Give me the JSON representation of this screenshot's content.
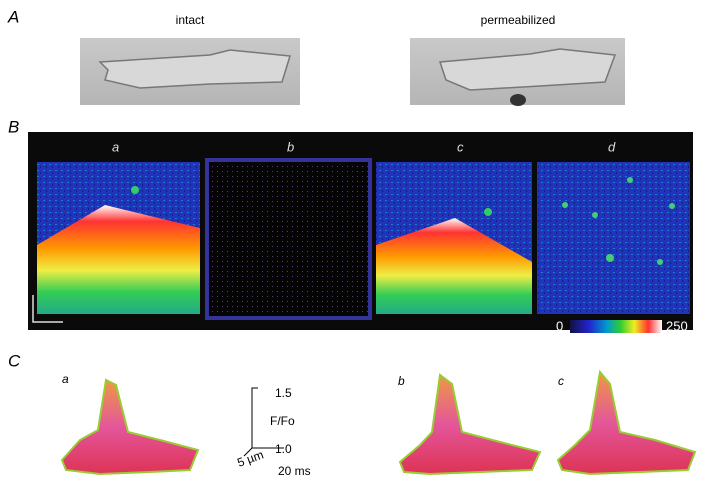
{
  "panel_a": {
    "label": "A",
    "images": [
      "intact",
      "permeabilized"
    ]
  },
  "panel_b": {
    "label": "B",
    "subpanels": [
      "a",
      "b",
      "c",
      "d"
    ],
    "colorbar": {
      "min": "0",
      "max": "250"
    }
  },
  "panel_c": {
    "label": "C",
    "subpanels": [
      "a",
      "b",
      "c"
    ],
    "scale": {
      "top": "1.5",
      "axis": "F/Fo",
      "bottom": "1.0",
      "x_length": "5 µm",
      "t_length": "20 ms"
    }
  }
}
